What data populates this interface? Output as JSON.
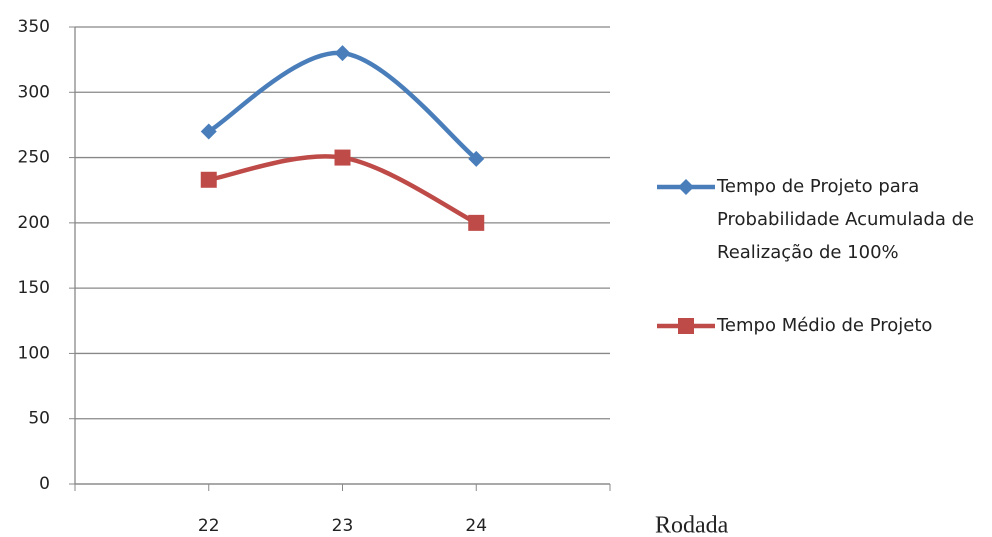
{
  "chart_data": {
    "type": "line",
    "x": [
      22,
      23,
      24
    ],
    "xlim": [
      21,
      25
    ],
    "xticks": [
      22,
      23,
      24
    ],
    "ylim": [
      0,
      350
    ],
    "yticks": [
      0,
      50,
      100,
      150,
      200,
      250,
      300,
      350
    ],
    "grid": true,
    "smooth": true,
    "legend": "right",
    "x_label": "Rodada",
    "series": [
      {
        "name": "Tempo de Projeto para Probabilidade Acumulada de Realização de 100%",
        "color": "#4a7ebb",
        "marker": "diamond",
        "values": [
          270,
          330,
          249
        ]
      },
      {
        "name": "Tempo Médio de Projeto",
        "color": "#be4b48",
        "marker": "square",
        "values": [
          233,
          250,
          200
        ]
      }
    ]
  }
}
